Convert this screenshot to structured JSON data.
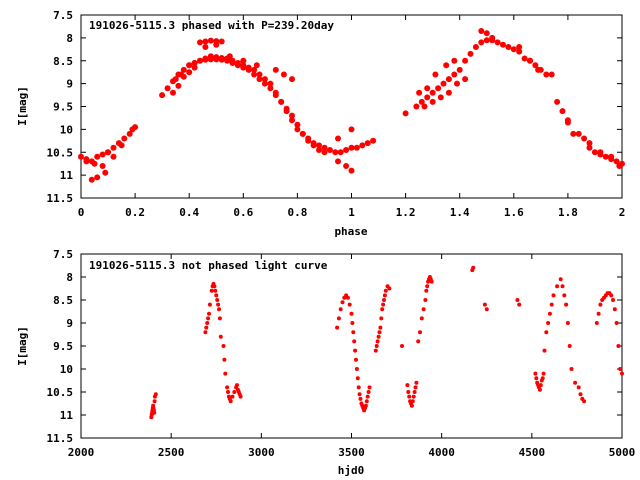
{
  "chart_data": [
    {
      "type": "scatter",
      "title": "191026-5115.3 phased with P=239.20day",
      "xlabel": "phase",
      "ylabel": "I[mag]",
      "xlim": [
        0,
        2
      ],
      "ylim": [
        11.5,
        7.5
      ],
      "y_inverted": true,
      "xticks": [
        "0",
        "0.2",
        "0.4",
        "0.6",
        "0.8",
        "1",
        "1.2",
        "1.4",
        "1.6",
        "1.8",
        "2"
      ],
      "yticks": [
        "7.5",
        "8",
        "8.5",
        "9",
        "9.5",
        "10",
        "10.5",
        "11",
        "11.5"
      ],
      "grid": false,
      "marker_color": "#ff0000",
      "series": [
        {
          "x": [
            0.0,
            0.02,
            0.04,
            0.06,
            0.08,
            0.1,
            0.12,
            0.14,
            0.16,
            0.18,
            0.2,
            0.02,
            0.05,
            0.08,
            0.1,
            0.04,
            0.06,
            0.09,
            0.12,
            0.15,
            0.19,
            0.3,
            0.32,
            0.34,
            0.36,
            0.38,
            0.4,
            0.42,
            0.44,
            0.46,
            0.48,
            0.5,
            0.52,
            0.54,
            0.56,
            0.58,
            0.6,
            0.62,
            0.64,
            0.66,
            0.68,
            0.7,
            0.72,
            0.74,
            0.76,
            0.78,
            0.8,
            0.82,
            0.84,
            0.86,
            0.88,
            0.9,
            0.92,
            0.94,
            0.96,
            0.98,
            1.0,
            1.02,
            1.04,
            1.06,
            1.08,
            0.4,
            0.42,
            0.44,
            0.46,
            0.48,
            0.5,
            0.52,
            0.54,
            0.56,
            0.58,
            0.6,
            0.62,
            0.64,
            0.66,
            0.68,
            0.7,
            0.72,
            0.74,
            0.76,
            0.78,
            0.8,
            0.82,
            0.84,
            0.86,
            0.88,
            0.9,
            0.95,
            0.98,
            1.0,
            0.44,
            0.46,
            0.48,
            0.5,
            0.52,
            0.46,
            0.5,
            0.34,
            0.36,
            0.38,
            0.4,
            0.42,
            0.35,
            0.37,
            0.55,
            0.6,
            0.65,
            0.72,
            0.75,
            0.78,
            0.95,
            1.0,
            1.2,
            1.24,
            1.26,
            1.28,
            1.3,
            1.32,
            1.34,
            1.36,
            1.38,
            1.4,
            1.42,
            1.44,
            1.46,
            1.48,
            1.5,
            1.52,
            1.54,
            1.56,
            1.58,
            1.6,
            1.62,
            1.64,
            1.66,
            1.68,
            1.7,
            1.72,
            1.74,
            1.76,
            1.78,
            1.8,
            1.82,
            1.84,
            1.86,
            1.88,
            1.9,
            1.92,
            1.94,
            1.96,
            1.98,
            2.0,
            1.27,
            1.3,
            1.33,
            1.36,
            1.39,
            1.42,
            1.25,
            1.28,
            1.31,
            1.35,
            1.38,
            1.48,
            1.5,
            1.52,
            1.62,
            1.66,
            1.69,
            1.8,
            1.88,
            1.92,
            1.96,
            1.99
          ],
          "y": [
            10.6,
            10.65,
            10.7,
            10.6,
            10.55,
            10.5,
            10.4,
            10.3,
            10.2,
            10.1,
            9.95,
            10.7,
            10.75,
            10.8,
            10.5,
            11.1,
            11.05,
            10.95,
            10.6,
            10.35,
            10.0,
            9.25,
            9.1,
            8.95,
            8.8,
            8.7,
            8.6,
            8.55,
            8.5,
            8.45,
            8.4,
            8.42,
            8.44,
            8.45,
            8.5,
            8.55,
            8.6,
            8.65,
            8.7,
            8.8,
            8.9,
            9.0,
            9.2,
            9.4,
            9.6,
            9.8,
            10.0,
            10.1,
            10.2,
            10.3,
            10.35,
            10.4,
            10.45,
            10.5,
            10.5,
            10.45,
            10.4,
            10.4,
            10.35,
            10.3,
            10.25,
            8.6,
            8.55,
            8.5,
            8.48,
            8.47,
            8.47,
            8.48,
            8.5,
            8.55,
            8.6,
            8.65,
            8.7,
            8.8,
            8.9,
            9.0,
            9.1,
            9.25,
            9.4,
            9.55,
            9.7,
            9.9,
            10.1,
            10.25,
            10.35,
            10.45,
            10.5,
            10.7,
            10.8,
            10.9,
            8.1,
            8.08,
            8.06,
            8.07,
            8.08,
            8.2,
            8.15,
            9.2,
            9.05,
            8.85,
            8.75,
            8.65,
            8.9,
            8.8,
            8.4,
            8.5,
            8.6,
            8.7,
            8.8,
            8.9,
            10.2,
            10.0,
            9.65,
            9.5,
            9.4,
            9.3,
            9.2,
            9.1,
            9.0,
            8.9,
            8.8,
            8.7,
            8.5,
            8.35,
            8.2,
            8.1,
            8.05,
            8.05,
            8.1,
            8.15,
            8.2,
            8.25,
            8.3,
            8.45,
            8.5,
            8.6,
            8.7,
            8.8,
            8.8,
            9.4,
            9.6,
            9.85,
            10.1,
            10.1,
            10.2,
            10.4,
            10.5,
            10.55,
            10.6,
            10.65,
            10.7,
            10.75,
            9.5,
            9.4,
            9.3,
            9.2,
            9.0,
            8.9,
            9.2,
            9.1,
            8.8,
            8.6,
            8.5,
            7.85,
            7.9,
            8.0,
            8.2,
            8.5,
            8.7,
            9.8,
            10.3,
            10.5,
            10.6,
            10.8
          ]
        }
      ]
    },
    {
      "type": "scatter",
      "title": "191026-5115.3 not phased light curve",
      "xlabel": "hjd0",
      "ylabel": "I[mag]",
      "xlim": [
        2000,
        5000
      ],
      "ylim": [
        11.5,
        7.5
      ],
      "y_inverted": true,
      "xticks": [
        "2000",
        "2500",
        "3000",
        "3500",
        "4000",
        "4500",
        "5000"
      ],
      "yticks": [
        "7.5",
        "8",
        "8.5",
        "9",
        "9.5",
        "10",
        "10.5",
        "11",
        "11.5"
      ],
      "grid": false,
      "marker_color": "#ff0000",
      "series": [
        {
          "x": [
            2390,
            2392,
            2394,
            2396,
            2398,
            2400,
            2402,
            2404,
            2406,
            2408,
            2410,
            2415,
            2690,
            2695,
            2700,
            2705,
            2710,
            2715,
            2725,
            2730,
            2735,
            2740,
            2745,
            2750,
            2755,
            2760,
            2765,
            2770,
            2775,
            2790,
            2795,
            2800,
            2810,
            2815,
            2820,
            2825,
            2830,
            2840,
            2850,
            2860,
            2865,
            2870,
            2875,
            2880,
            2885,
            3420,
            3430,
            3440,
            3450,
            3460,
            3470,
            3480,
            3490,
            3500,
            3505,
            3510,
            3515,
            3520,
            3525,
            3530,
            3535,
            3540,
            3545,
            3550,
            3555,
            3560,
            3565,
            3570,
            3575,
            3580,
            3585,
            3590,
            3595,
            3600,
            3635,
            3640,
            3645,
            3650,
            3655,
            3660,
            3665,
            3670,
            3675,
            3680,
            3685,
            3690,
            3700,
            3710,
            3780,
            3810,
            3815,
            3820,
            3825,
            3830,
            3835,
            3840,
            3845,
            3850,
            3855,
            3860,
            3870,
            3880,
            3890,
            3900,
            3910,
            3915,
            3920,
            3925,
            3930,
            3935,
            3940,
            3945,
            4170,
            4175,
            4240,
            4250,
            4420,
            4430,
            4520,
            4525,
            4530,
            4535,
            4540,
            4545,
            4550,
            4555,
            4560,
            4565,
            4570,
            4580,
            4590,
            4600,
            4610,
            4620,
            4640,
            4660,
            4670,
            4680,
            4690,
            4700,
            4710,
            4720,
            4740,
            4760,
            4770,
            4780,
            4790,
            4860,
            4870,
            4880,
            4890,
            4900,
            4910,
            4920,
            4930,
            4940,
            4950,
            4960,
            4970,
            4980,
            4990,
            5000
          ],
          "y": [
            11.05,
            11.0,
            10.95,
            10.9,
            10.85,
            10.8,
            10.85,
            10.9,
            10.95,
            10.7,
            10.6,
            10.55,
            9.2,
            9.1,
            9.0,
            8.9,
            8.8,
            8.6,
            8.3,
            8.2,
            8.15,
            8.2,
            8.3,
            8.4,
            8.5,
            8.6,
            8.7,
            8.9,
            9.3,
            9.5,
            9.8,
            10.1,
            10.4,
            10.5,
            10.6,
            10.65,
            10.7,
            10.6,
            10.5,
            10.4,
            10.35,
            10.45,
            10.5,
            10.55,
            10.6,
            9.1,
            8.9,
            8.7,
            8.55,
            8.45,
            8.4,
            8.45,
            8.6,
            8.8,
            9.0,
            9.2,
            9.4,
            9.6,
            9.8,
            10.0,
            10.2,
            10.4,
            10.55,
            10.65,
            10.75,
            10.8,
            10.85,
            10.9,
            10.85,
            10.8,
            10.7,
            10.6,
            10.5,
            10.4,
            9.6,
            9.5,
            9.4,
            9.3,
            9.2,
            9.1,
            8.9,
            8.7,
            8.6,
            8.5,
            8.4,
            8.3,
            8.2,
            8.25,
            9.5,
            10.35,
            10.5,
            10.6,
            10.7,
            10.75,
            10.8,
            10.7,
            10.6,
            10.5,
            10.4,
            10.3,
            9.4,
            9.2,
            8.9,
            8.7,
            8.5,
            8.3,
            8.2,
            8.1,
            8.05,
            8.0,
            8.05,
            8.1,
            7.85,
            7.8,
            8.6,
            8.7,
            8.5,
            8.6,
            10.1,
            10.2,
            10.3,
            10.35,
            10.4,
            10.45,
            10.35,
            10.25,
            10.2,
            10.1,
            9.6,
            9.2,
            9.0,
            8.8,
            8.6,
            8.4,
            8.2,
            8.05,
            8.2,
            8.4,
            8.6,
            9.0,
            9.5,
            10.0,
            10.3,
            10.4,
            10.55,
            10.65,
            10.7,
            9.0,
            8.8,
            8.6,
            8.5,
            8.45,
            8.4,
            8.35,
            8.35,
            8.4,
            8.5,
            8.7,
            9.0,
            9.5,
            10.0,
            10.1
          ]
        }
      ]
    }
  ]
}
